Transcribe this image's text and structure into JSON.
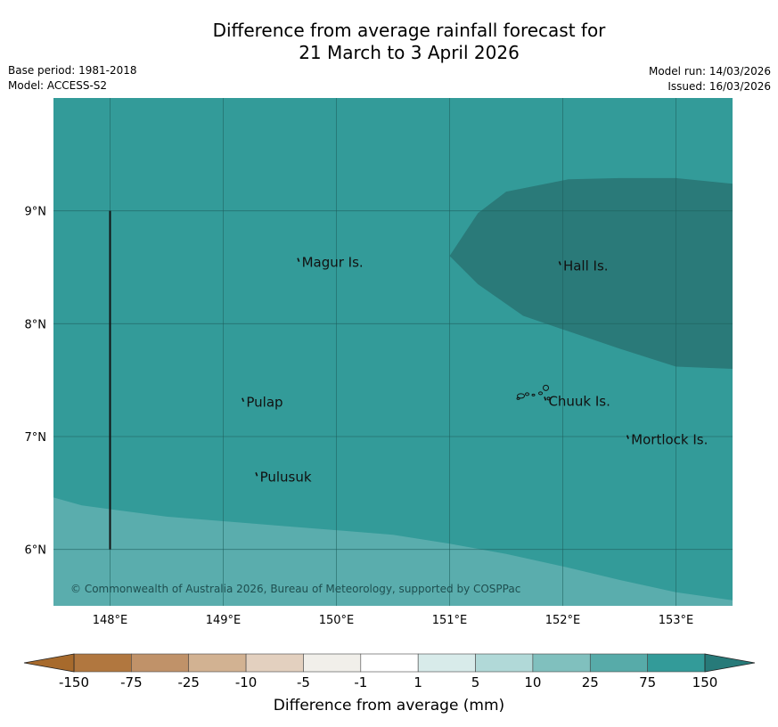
{
  "title": {
    "line1": "Difference from average rainfall forecast for",
    "line2": "21 March to 3 April 2026"
  },
  "meta": {
    "base_period": "Base period: 1981-2018",
    "model": "Model: ACCESS-S2",
    "model_run": "Model run: 14/03/2026",
    "issued": "Issued: 16/03/2026"
  },
  "map": {
    "lon_range": [
      147.5,
      153.5
    ],
    "lat_range": [
      5.5,
      10.0
    ],
    "lon_ticks": [
      {
        "value": 148,
        "label": "148°E"
      },
      {
        "value": 149,
        "label": "149°E"
      },
      {
        "value": 150,
        "label": "150°E"
      },
      {
        "value": 151,
        "label": "151°E"
      },
      {
        "value": 152,
        "label": "152°E"
      },
      {
        "value": 153,
        "label": "153°E"
      }
    ],
    "lat_ticks": [
      {
        "value": 9,
        "label": "9°N"
      },
      {
        "value": 8,
        "label": "8°N"
      },
      {
        "value": 7,
        "label": "7°N"
      },
      {
        "value": 6,
        "label": "6°N"
      }
    ],
    "places": [
      {
        "name": "Magur Is.",
        "lon": 149.67,
        "lat": 8.55
      },
      {
        "name": "Hall Is.",
        "lon": 151.98,
        "lat": 8.52
      },
      {
        "name": "Pulap",
        "lon": 149.18,
        "lat": 7.31
      },
      {
        "name": "Chuuk Is.",
        "lon": 151.85,
        "lat": 7.32
      },
      {
        "name": "Mortlock Is.",
        "lon": 152.58,
        "lat": 6.98
      },
      {
        "name": "Pulusuk",
        "lon": 149.3,
        "lat": 6.65
      }
    ],
    "copyright": "© Commonwealth of Australia 2026, Bureau of Meteorology, supported by COSPPac",
    "background_fill": "#339b99",
    "wet_zone_fill": "#2a7a79",
    "dry_zone_fill": "#5aadad"
  },
  "colorbar": {
    "label": "Difference from average (mm)",
    "ticks": [
      "-150",
      "-75",
      "-25",
      "-10",
      "-5",
      "-1",
      "1",
      "5",
      "10",
      "25",
      "75",
      "150"
    ],
    "colors": [
      "#a76a2c",
      "#b1773f",
      "#c09269",
      "#d2b292",
      "#e3d0bf",
      "#f1efea",
      "#ffffff",
      "#d8ebea",
      "#b1d9d8",
      "#80c0be",
      "#57aba9",
      "#339b99",
      "#277a79"
    ]
  }
}
